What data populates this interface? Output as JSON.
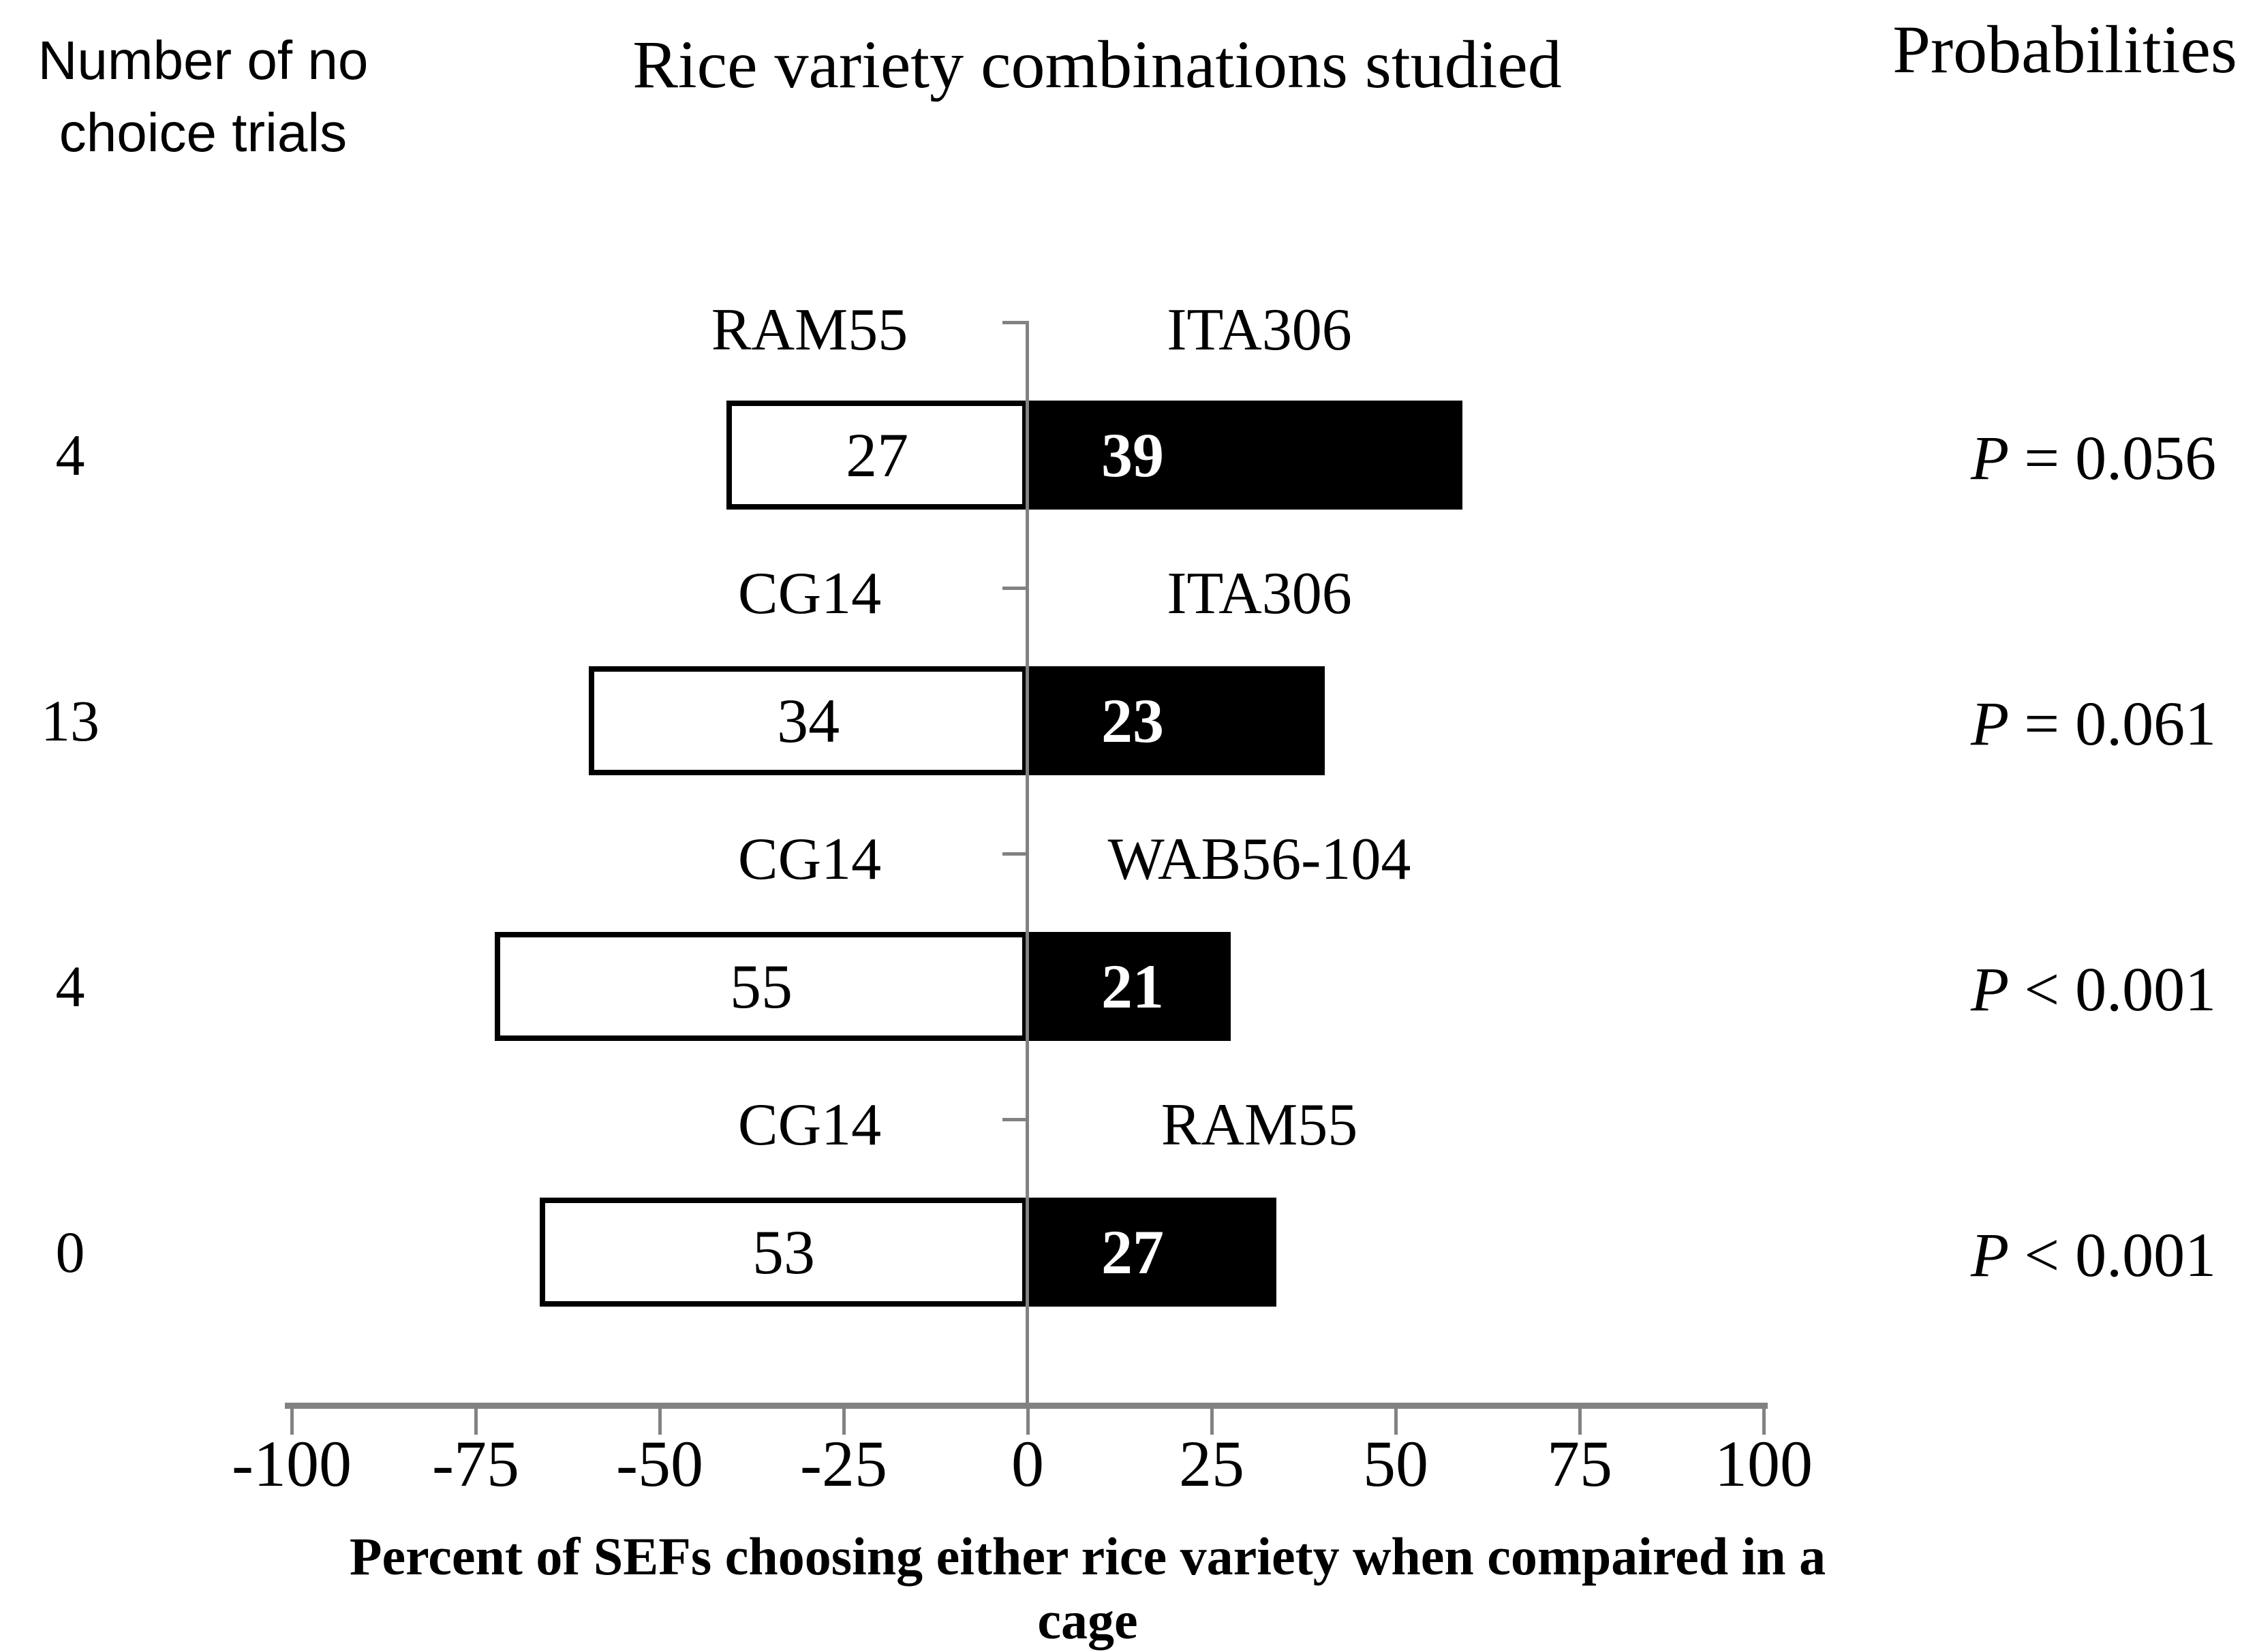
{
  "header": {
    "left_axis_title_line1": "Number of no",
    "left_axis_title_line2": "choice trials",
    "chart_title": "Rice variety combinations studied",
    "right_column_title": "Probabilities"
  },
  "chart_data": {
    "type": "bar",
    "orientation": "horizontal-diverging",
    "title": "Rice variety combinations studied",
    "xlabel": "Percent of SEFs choosing either rice variety when compaired in a cage",
    "left_category_axis_title": "Number of no choice trials",
    "right_column_title": "Probabilities",
    "xlim": [
      -100,
      100
    ],
    "x_ticks": [
      -100,
      -75,
      -50,
      -25,
      0,
      25,
      50,
      75,
      100
    ],
    "x_tick_labels": [
      "-100",
      "-75",
      "-50",
      "-25",
      "0",
      "25",
      "50",
      "75",
      "100"
    ],
    "grid": false,
    "p_symbol": "P",
    "bar_colors": {
      "left_bar_fill": "#ffffff",
      "left_bar_border": "#000000",
      "right_bar_fill": "#000000"
    },
    "axis_color": "#828282",
    "rows": [
      {
        "no_choice_trials": "4",
        "left_variety": "RAM55",
        "right_variety": "ITA306",
        "left_count": "27",
        "right_count": "39",
        "left_percent": -40.9,
        "right_percent": 59.1,
        "p_text": "= 0.056"
      },
      {
        "no_choice_trials": "13",
        "left_variety": "CG14",
        "right_variety": "ITA306",
        "left_count": "34",
        "right_count": "23",
        "left_percent": -59.6,
        "right_percent": 40.4,
        "p_text": "= 0.061"
      },
      {
        "no_choice_trials": "4",
        "left_variety": "CG14",
        "right_variety": "WAB56-104",
        "left_count": "55",
        "right_count": "21",
        "left_percent": -72.4,
        "right_percent": 27.6,
        "p_text": "< 0.001"
      },
      {
        "no_choice_trials": "0",
        "left_variety": "CG14",
        "right_variety": "RAM55",
        "left_count": "53",
        "right_count": "27",
        "left_percent": -66.3,
        "right_percent": 33.8,
        "p_text": "< 0.001"
      }
    ]
  }
}
